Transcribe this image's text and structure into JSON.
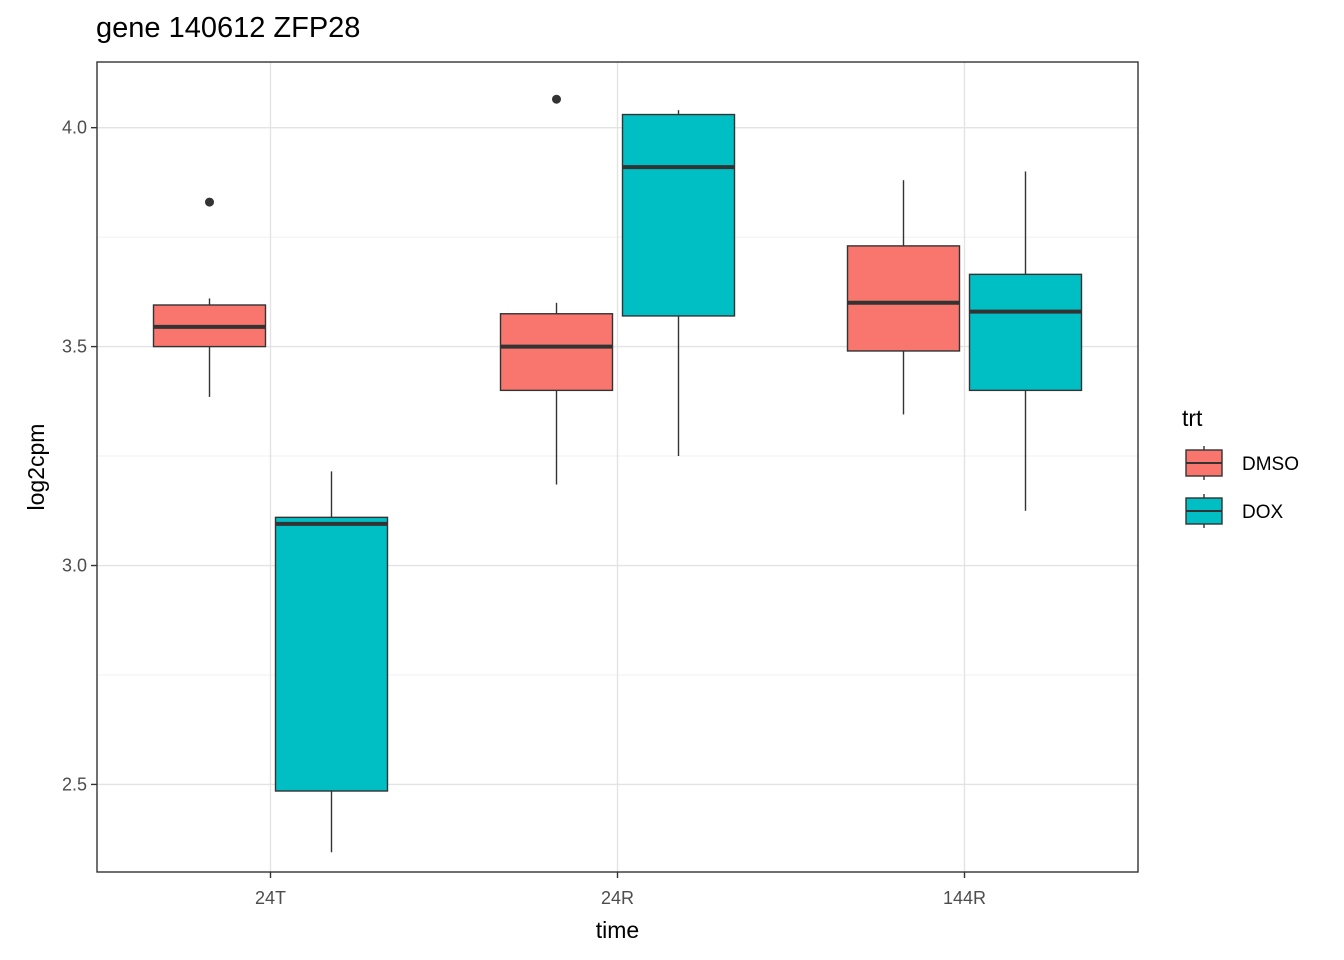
{
  "chart_data": {
    "type": "boxplot",
    "title": "gene 140612 ZFP28",
    "xlabel": "time",
    "ylabel": "log2cpm",
    "ylim": [
      2.3,
      4.15
    ],
    "yticks": [
      2.5,
      3.0,
      3.5,
      4.0
    ],
    "ytick_labels": [
      "2.5",
      "3.0",
      "3.5",
      "4.0"
    ],
    "categories": [
      "24T",
      "24R",
      "144R"
    ],
    "grid": true,
    "legend": {
      "title": "trt",
      "position": "right",
      "entries": [
        {
          "label": "DMSO",
          "color": "#F8766D"
        },
        {
          "label": "DOX",
          "color": "#00BFC4"
        }
      ]
    },
    "series": [
      {
        "name": "DMSO",
        "color": "#F8766D",
        "boxes": [
          {
            "category": "24T",
            "whisker_low": 3.385,
            "q1": 3.5,
            "median": 3.545,
            "q3": 3.595,
            "whisker_high": 3.61,
            "outliers": [
              3.83
            ]
          },
          {
            "category": "24R",
            "whisker_low": 3.185,
            "q1": 3.4,
            "median": 3.5,
            "q3": 3.575,
            "whisker_high": 3.6,
            "outliers": [
              4.065
            ]
          },
          {
            "category": "144R",
            "whisker_low": 3.345,
            "q1": 3.49,
            "median": 3.6,
            "q3": 3.73,
            "whisker_high": 3.88,
            "outliers": []
          }
        ]
      },
      {
        "name": "DOX",
        "color": "#00BFC4",
        "boxes": [
          {
            "category": "24T",
            "whisker_low": 2.345,
            "q1": 2.485,
            "median": 3.095,
            "q3": 3.11,
            "whisker_high": 3.215,
            "outliers": []
          },
          {
            "category": "24R",
            "whisker_low": 3.25,
            "q1": 3.57,
            "median": 3.91,
            "q3": 4.03,
            "whisker_high": 4.04,
            "outliers": []
          },
          {
            "category": "144R",
            "whisker_low": 3.125,
            "q1": 3.4,
            "median": 3.58,
            "q3": 3.665,
            "whisker_high": 3.9,
            "outliers": []
          }
        ]
      }
    ]
  }
}
